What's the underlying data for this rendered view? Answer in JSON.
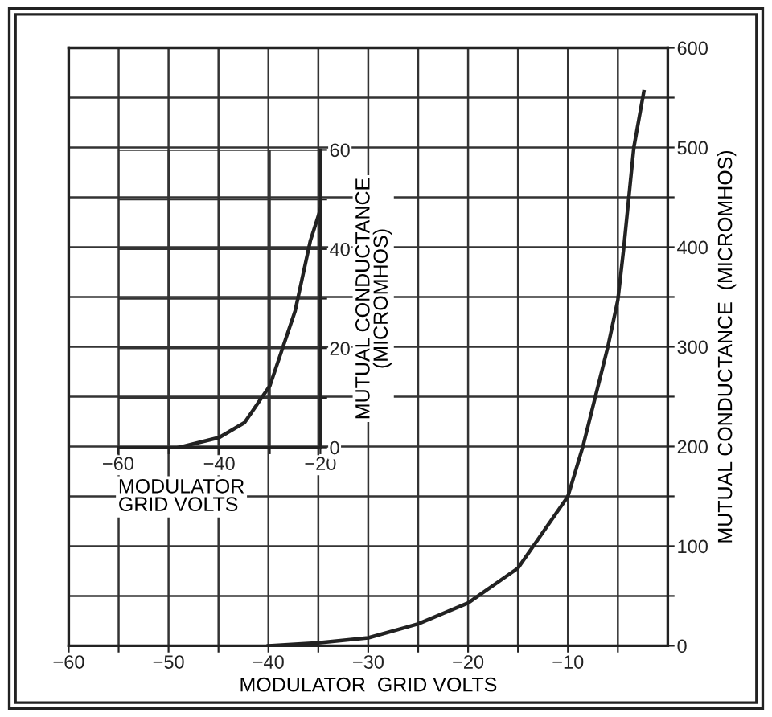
{
  "chart_data": [
    {
      "type": "line",
      "xlabel": "MODULATOR  GRID VOLTS",
      "ylabel": "MUTUAL CONDUCTANCE  (MICROMHOS)",
      "x": [
        -40,
        -35,
        -30,
        -25,
        -20,
        -15,
        -10,
        -8.5,
        -6,
        -5,
        -4.4,
        -3.4,
        -2.4
      ],
      "series": [
        {
          "color": "#222222",
          "values": [
            0,
            3,
            8,
            22,
            43,
            78,
            150,
            200,
            300,
            347,
            400,
            500,
            556
          ]
        }
      ],
      "xlim": [
        -60,
        0
      ],
      "ylim": [
        0,
        600
      ],
      "xticks": [
        -60,
        {
          "value": -55,
          "label": null
        },
        -50,
        {
          "value": -45,
          "label": null
        },
        -40,
        {
          "value": -35,
          "label": null
        },
        -30,
        {
          "value": -25,
          "label": null
        },
        -20,
        {
          "value": -15,
          "label": null
        },
        -10,
        {
          "value": -5,
          "label": null
        }
      ],
      "yticks": [
        0,
        {
          "value": 50,
          "label": null
        },
        100,
        {
          "value": 150,
          "label": null
        },
        200,
        {
          "value": 250,
          "label": null
        },
        300,
        {
          "value": 350,
          "label": null
        },
        400,
        {
          "value": 450,
          "label": null
        },
        500,
        {
          "value": 550,
          "label": null
        },
        600
      ],
      "grid": true,
      "marker": "none",
      "line_style": "solid"
    },
    {
      "type": "line",
      "xlabel": "MODULATOR\nGRID VOLTS",
      "ylabel": "MUTUAL CONDUCTANCE\n(MICROMHOS)",
      "x": [
        -48,
        -40,
        -35,
        -30,
        -25,
        -22,
        -20
      ],
      "series": [
        {
          "color": "#222222",
          "values": [
            0,
            2,
            5,
            12.4,
            27.5,
            41.6,
            48
          ]
        }
      ],
      "xlim": [
        -60,
        -20
      ],
      "ylim": [
        0,
        60
      ],
      "xticks": [
        -60,
        {
          "value": -50,
          "label": null
        },
        -40,
        {
          "value": -30,
          "label": null
        },
        -20
      ],
      "yticks": [
        0,
        {
          "value": 10,
          "label": null
        },
        20,
        {
          "value": 30,
          "label": null
        },
        40,
        {
          "value": 50,
          "label": null
        },
        60
      ],
      "grid": true,
      "marker": "none",
      "line_style": "solid"
    }
  ]
}
